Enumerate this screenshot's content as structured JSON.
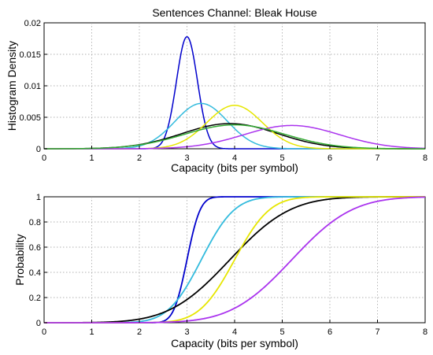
{
  "chart_data": [
    {
      "type": "line",
      "title": "Sentences Channel: Bleak House",
      "xlabel": "Capacity (bits per symbol)",
      "ylabel": "Histogram Density",
      "xlim": [
        0,
        8
      ],
      "ylim": [
        0,
        0.02
      ],
      "x_ticks": [
        "0",
        "1",
        "2",
        "3",
        "4",
        "5",
        "6",
        "7",
        "8"
      ],
      "y_ticks": [
        "0",
        "0.005",
        "0.01",
        "0.015",
        "0.02"
      ],
      "grid": true,
      "series": [
        {
          "color": "#0000cc",
          "mean": 3.0,
          "sd": 0.22,
          "peak": 0.0178
        },
        {
          "color": "#33bbdd",
          "mean": 3.3,
          "sd": 0.55,
          "peak": 0.0072
        },
        {
          "color": "#000000",
          "mean": 3.9,
          "sd": 1.0,
          "peak": 0.004
        },
        {
          "color": "#e6e600",
          "mean": 4.0,
          "sd": 0.58,
          "peak": 0.0069
        },
        {
          "color": "#aa33ee",
          "mean": 5.2,
          "sd": 1.0,
          "peak": 0.0037
        },
        {
          "color": "#33aa33",
          "mean": 4.0,
          "sd": 1.05,
          "peak": 0.0038
        }
      ]
    },
    {
      "type": "line",
      "title": "",
      "xlabel": "Capacity (bits per symbol)",
      "ylabel": "Probability",
      "xlim": [
        0,
        8
      ],
      "ylim": [
        0,
        1
      ],
      "x_ticks": [
        "0",
        "1",
        "2",
        "3",
        "4",
        "5",
        "6",
        "7",
        "8"
      ],
      "y_ticks": [
        "0",
        "0.2",
        "0.4",
        "0.6",
        "0.8",
        "1"
      ],
      "grid": true,
      "series": [
        {
          "color": "#0000cc",
          "mean": 3.0,
          "sd": 0.22
        },
        {
          "color": "#33bbdd",
          "mean": 3.3,
          "sd": 0.55
        },
        {
          "color": "#000000",
          "mean": 3.9,
          "sd": 1.0
        },
        {
          "color": "#e6e600",
          "mean": 4.0,
          "sd": 0.58
        },
        {
          "color": "#aa33ee",
          "mean": 5.2,
          "sd": 1.0
        }
      ]
    }
  ]
}
